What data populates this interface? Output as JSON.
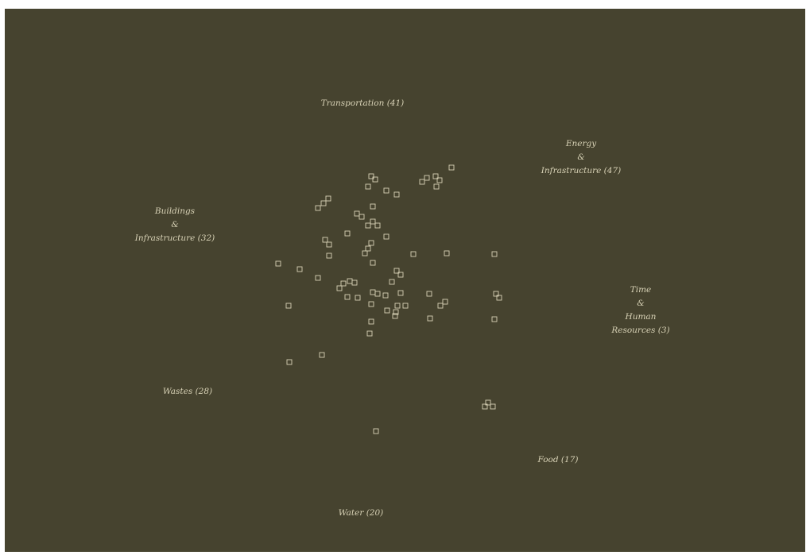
{
  "colors": {
    "background": "#46432f",
    "marker": "#d8d2b6",
    "label": "#d8d2b6"
  },
  "chart_data": {
    "type": "scatter",
    "title": "",
    "categories": [
      {
        "id": "transportation",
        "lines": [
          "Transportation (41)"
        ]
      },
      {
        "id": "energy",
        "lines": [
          "Energy",
          "&",
          "Infrastructure (47)"
        ]
      },
      {
        "id": "buildings",
        "lines": [
          "Buildings",
          "&",
          "Infrastructure (32)"
        ]
      },
      {
        "id": "time",
        "lines": [
          "Time",
          "&",
          "Human",
          "Resources (3)"
        ]
      },
      {
        "id": "wastes",
        "lines": [
          "Wastes (28)"
        ]
      },
      {
        "id": "food",
        "lines": [
          "Food (17)"
        ]
      },
      {
        "id": "water",
        "lines": [
          "Water (20)"
        ]
      }
    ],
    "marker": "square-outline",
    "points": [
      [
        568,
        211
      ],
      [
        537,
        224
      ],
      [
        548,
        222
      ],
      [
        531,
        229
      ],
      [
        553,
        227
      ],
      [
        549,
        235
      ],
      [
        467,
        222
      ],
      [
        472,
        226
      ],
      [
        463,
        235
      ],
      [
        486,
        240
      ],
      [
        499,
        245
      ],
      [
        413,
        250
      ],
      [
        407,
        256
      ],
      [
        400,
        262
      ],
      [
        469,
        260
      ],
      [
        449,
        269
      ],
      [
        455,
        273
      ],
      [
        469,
        279
      ],
      [
        463,
        284
      ],
      [
        475,
        284
      ],
      [
        437,
        294
      ],
      [
        486,
        298
      ],
      [
        409,
        302
      ],
      [
        414,
        308
      ],
      [
        467,
        306
      ],
      [
        463,
        313
      ],
      [
        459,
        319
      ],
      [
        414,
        322
      ],
      [
        520,
        320
      ],
      [
        562,
        319
      ],
      [
        622,
        320
      ],
      [
        350,
        332
      ],
      [
        469,
        331
      ],
      [
        377,
        339
      ],
      [
        499,
        341
      ],
      [
        504,
        346
      ],
      [
        400,
        350
      ],
      [
        493,
        355
      ],
      [
        432,
        357
      ],
      [
        440,
        354
      ],
      [
        446,
        356
      ],
      [
        427,
        363
      ],
      [
        469,
        368
      ],
      [
        475,
        370
      ],
      [
        485,
        372
      ],
      [
        504,
        369
      ],
      [
        540,
        370
      ],
      [
        437,
        374
      ],
      [
        450,
        375
      ],
      [
        624,
        370
      ],
      [
        628,
        375
      ],
      [
        363,
        385
      ],
      [
        467,
        383
      ],
      [
        560,
        380
      ],
      [
        554,
        385
      ],
      [
        500,
        385
      ],
      [
        510,
        385
      ],
      [
        487,
        391
      ],
      [
        498,
        393
      ],
      [
        497,
        398
      ],
      [
        541,
        401
      ],
      [
        622,
        402
      ],
      [
        467,
        405
      ],
      [
        465,
        420
      ],
      [
        405,
        447
      ],
      [
        364,
        456
      ],
      [
        614,
        507
      ],
      [
        610,
        512
      ],
      [
        620,
        512
      ],
      [
        473,
        543
      ]
    ]
  }
}
